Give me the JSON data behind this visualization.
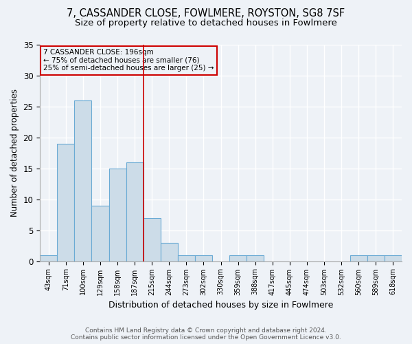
{
  "title1": "7, CASSANDER CLOSE, FOWLMERE, ROYSTON, SG8 7SF",
  "title2": "Size of property relative to detached houses in Fowlmere",
  "xlabel": "Distribution of detached houses by size in Fowlmere",
  "ylabel": "Number of detached properties",
  "footer1": "Contains HM Land Registry data © Crown copyright and database right 2024.",
  "footer2": "Contains public sector information licensed under the Open Government Licence v3.0.",
  "categories": [
    "43sqm",
    "71sqm",
    "100sqm",
    "129sqm",
    "158sqm",
    "187sqm",
    "215sqm",
    "244sqm",
    "273sqm",
    "302sqm",
    "330sqm",
    "359sqm",
    "388sqm",
    "417sqm",
    "445sqm",
    "474sqm",
    "503sqm",
    "532sqm",
    "560sqm",
    "589sqm",
    "618sqm"
  ],
  "values": [
    1,
    19,
    26,
    9,
    15,
    16,
    7,
    3,
    1,
    1,
    0,
    1,
    1,
    0,
    0,
    0,
    0,
    0,
    1,
    1,
    1
  ],
  "bar_color": "#ccdce8",
  "bar_edge_color": "#6aaad4",
  "ylim": [
    0,
    35
  ],
  "yticks": [
    0,
    5,
    10,
    15,
    20,
    25,
    30,
    35
  ],
  "property_line_x": 5.5,
  "annotation_text1": "7 CASSANDER CLOSE: 196sqm",
  "annotation_text2": "← 75% of detached houses are smaller (76)",
  "annotation_text3": "25% of semi-detached houses are larger (25) →",
  "red_line_color": "#cc0000",
  "background_color": "#eef2f7",
  "grid_color": "#ffffff"
}
